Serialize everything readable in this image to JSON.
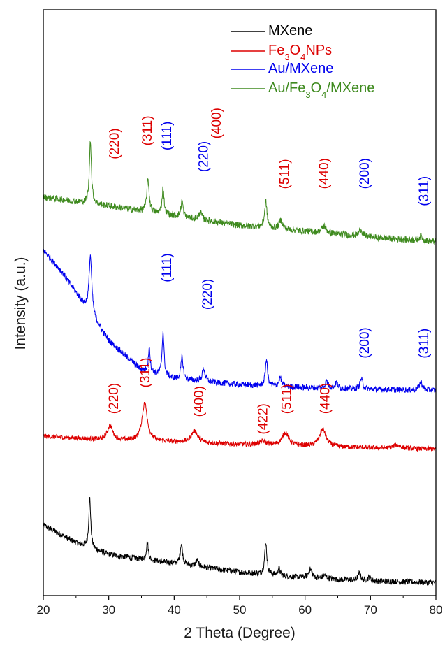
{
  "chart_data": {
    "type": "line",
    "xlabel": "2 Theta (Degree)",
    "ylabel": "Intensity (a.u.)",
    "xlim": [
      20,
      80
    ],
    "x_ticks": [
      "20",
      "30",
      "40",
      "50",
      "60",
      "70",
      "80"
    ],
    "ylim": [
      0,
      1
    ],
    "y_ticks_shown": false,
    "grid": false,
    "legend_position": "top-right",
    "legend": [
      {
        "text": "MXene",
        "sub": [],
        "color": "#000000"
      },
      {
        "text": "Fe3O4NPs",
        "sub": [
          2,
          4
        ],
        "color": "#dd0000"
      },
      {
        "text": "Au/MXene",
        "sub": [],
        "color": "#0000ee"
      },
      {
        "text": "Au/Fe3O4/MXene",
        "sub": [
          5,
          7
        ],
        "color": "#3e8a1e"
      }
    ],
    "series": [
      {
        "name": "MXene",
        "color": "#000000",
        "baseline": [
          [
            20,
            0.12
          ],
          [
            25,
            0.09
          ],
          [
            30,
            0.07
          ],
          [
            40,
            0.055
          ],
          [
            50,
            0.04
          ],
          [
            60,
            0.03
          ],
          [
            70,
            0.025
          ],
          [
            80,
            0.022
          ]
        ],
        "peaks": [
          [
            27.1,
            0.085,
            0.18
          ],
          [
            35.9,
            0.03,
            0.18
          ],
          [
            41.1,
            0.035,
            0.22
          ],
          [
            43.5,
            0.01,
            0.25
          ],
          [
            54.0,
            0.055,
            0.2
          ],
          [
            56.0,
            0.012,
            0.22
          ],
          [
            60.8,
            0.015,
            0.35
          ],
          [
            63.0,
            0.006,
            0.35
          ],
          [
            68.3,
            0.012,
            0.25
          ],
          [
            69.8,
            0.006,
            0.25
          ]
        ],
        "noise": 0.005
      },
      {
        "name": "Fe3O4NPs",
        "color": "#dd0000",
        "baseline": [
          [
            20,
            0.272
          ],
          [
            30,
            0.265
          ],
          [
            40,
            0.262
          ],
          [
            50,
            0.258
          ],
          [
            60,
            0.255
          ],
          [
            70,
            0.252
          ],
          [
            80,
            0.25
          ]
        ],
        "peaks": [
          [
            30.2,
            0.025,
            0.5
          ],
          [
            35.5,
            0.065,
            0.5
          ],
          [
            43.1,
            0.02,
            0.6
          ],
          [
            53.5,
            0.006,
            0.6
          ],
          [
            57.0,
            0.022,
            0.6
          ],
          [
            62.7,
            0.03,
            0.6
          ],
          [
            74.0,
            0.006,
            0.6
          ]
        ],
        "noise": 0.004
      },
      {
        "name": "Au/MXene",
        "color": "#0000ee",
        "baseline": [
          [
            20,
            0.59
          ],
          [
            23,
            0.55
          ],
          [
            26,
            0.5
          ],
          [
            30,
            0.435
          ],
          [
            35,
            0.385
          ],
          [
            40,
            0.37
          ],
          [
            50,
            0.36
          ],
          [
            60,
            0.355
          ],
          [
            70,
            0.352
          ],
          [
            80,
            0.35
          ]
        ],
        "peaks": [
          [
            27.2,
            0.1,
            0.25
          ],
          [
            36.2,
            0.045,
            0.15
          ],
          [
            38.3,
            0.075,
            0.18
          ],
          [
            41.2,
            0.038,
            0.2
          ],
          [
            44.5,
            0.022,
            0.25
          ],
          [
            54.1,
            0.045,
            0.2
          ],
          [
            56.2,
            0.015,
            0.25
          ],
          [
            63.3,
            0.012,
            0.25
          ],
          [
            64.8,
            0.01,
            0.25
          ],
          [
            68.6,
            0.018,
            0.25
          ],
          [
            77.7,
            0.014,
            0.3
          ]
        ],
        "noise": 0.005
      },
      {
        "name": "Au/Fe3O4/MXene",
        "color": "#3e8a1e",
        "baseline": [
          [
            20,
            0.68
          ],
          [
            30,
            0.665
          ],
          [
            40,
            0.648
          ],
          [
            50,
            0.632
          ],
          [
            60,
            0.622
          ],
          [
            70,
            0.612
          ],
          [
            80,
            0.604
          ]
        ],
        "peaks": [
          [
            27.2,
            0.11,
            0.18
          ],
          [
            36.0,
            0.055,
            0.22
          ],
          [
            38.3,
            0.045,
            0.18
          ],
          [
            41.2,
            0.028,
            0.2
          ],
          [
            44.0,
            0.012,
            0.3
          ],
          [
            54.0,
            0.045,
            0.22
          ],
          [
            56.3,
            0.015,
            0.3
          ],
          [
            62.9,
            0.012,
            0.4
          ],
          [
            68.5,
            0.012,
            0.3
          ],
          [
            77.7,
            0.008,
            0.3
          ]
        ],
        "noise": 0.0055
      }
    ],
    "peak_labels": [
      {
        "text": "(220)",
        "x": 31.0,
        "y": 0.745,
        "color": "#dd0000"
      },
      {
        "text": "(311)",
        "x": 36.0,
        "y": 0.768,
        "color": "#dd0000"
      },
      {
        "text": "(111)",
        "x": 39.0,
        "y": 0.76,
        "color": "#0000ee"
      },
      {
        "text": "(220)",
        "x": 44.6,
        "y": 0.723,
        "color": "#0000ee"
      },
      {
        "text": "(400)",
        "x": 46.6,
        "y": 0.78,
        "color": "#dd0000"
      },
      {
        "text": "(511)",
        "x": 57.0,
        "y": 0.694,
        "color": "#dd0000"
      },
      {
        "text": "(440)",
        "x": 63.0,
        "y": 0.694,
        "color": "#dd0000"
      },
      {
        "text": "(200)",
        "x": 69.2,
        "y": 0.694,
        "color": "#0000ee"
      },
      {
        "text": "(311)",
        "x": 78.3,
        "y": 0.665,
        "color": "#0000ee"
      },
      {
        "text": "(111)",
        "x": 39.0,
        "y": 0.535,
        "color": "#0000ee"
      },
      {
        "text": "(220)",
        "x": 45.2,
        "y": 0.488,
        "color": "#0000ee"
      },
      {
        "text": "(200)",
        "x": 69.2,
        "y": 0.405,
        "color": "#0000ee"
      },
      {
        "text": "(311)",
        "x": 78.3,
        "y": 0.405,
        "color": "#0000ee"
      },
      {
        "text": "(220)",
        "x": 30.9,
        "y": 0.31,
        "color": "#dd0000"
      },
      {
        "text": "(311)",
        "x": 35.7,
        "y": 0.355,
        "color": "#dd0000"
      },
      {
        "text": "(400)",
        "x": 43.9,
        "y": 0.305,
        "color": "#dd0000"
      },
      {
        "text": "(422)",
        "x": 53.7,
        "y": 0.275,
        "color": "#dd0000"
      },
      {
        "text": "(511)",
        "x": 57.3,
        "y": 0.31,
        "color": "#dd0000"
      },
      {
        "text": "(440)",
        "x": 63.2,
        "y": 0.31,
        "color": "#dd0000"
      }
    ]
  }
}
